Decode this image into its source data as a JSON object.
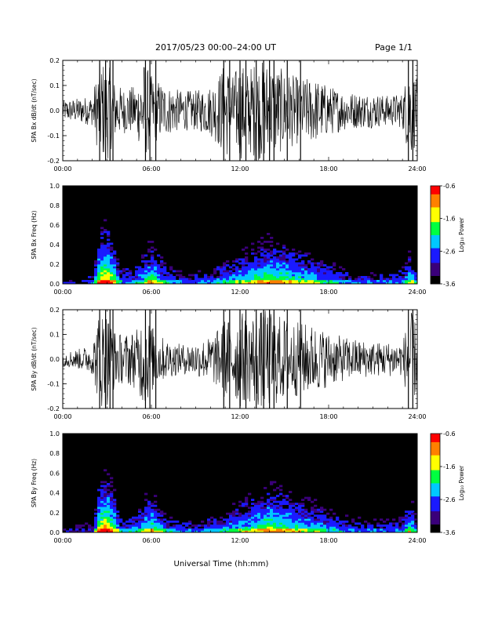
{
  "header": {
    "title": "2017/05/23  00:00–24:00 UT",
    "page": "Page 1/1"
  },
  "xlabel": "Universal Time (hh:mm)",
  "colors": {
    "trace": "#000000",
    "colormap": [
      "#000000",
      "#3a007a",
      "#1a1aff",
      "#00c8ff",
      "#00ff40",
      "#ffff00",
      "#ff8000",
      "#ff0000"
    ]
  },
  "chart_data": [
    {
      "type": "line",
      "ylabel": "SPA Bx dB/dt (nT/sec)",
      "xlim": [
        0,
        24
      ],
      "ylim": [
        -0.2,
        0.2
      ],
      "xticks": [
        "00:00",
        "06:00",
        "12:00",
        "18:00",
        "24:00"
      ],
      "yticks": [
        "-0.2",
        "-0.1",
        "0.0",
        "0.1",
        "0.2"
      ],
      "ytick_values": [
        -0.2,
        -0.1,
        0.0,
        0.1,
        0.2
      ],
      "envelope": {
        "x": [
          0,
          1,
          2,
          2.5,
          3,
          3.5,
          4,
          5,
          5.5,
          6,
          6.5,
          7,
          8,
          9,
          10,
          10.5,
          11,
          11.5,
          12,
          12.5,
          13,
          13.5,
          14,
          15,
          16,
          17,
          18,
          19,
          20,
          21,
          22,
          23,
          23.5,
          24
        ],
        "amplitude": [
          0.04,
          0.05,
          0.06,
          0.2,
          0.2,
          0.12,
          0.09,
          0.1,
          0.2,
          0.14,
          0.12,
          0.1,
          0.08,
          0.08,
          0.1,
          0.14,
          0.2,
          0.14,
          0.2,
          0.16,
          0.2,
          0.2,
          0.2,
          0.16,
          0.13,
          0.13,
          0.1,
          0.08,
          0.07,
          0.07,
          0.06,
          0.07,
          0.2,
          0.12
        ]
      }
    },
    {
      "type": "heatmap",
      "ylabel": "SPA Bx Freq (Hz)",
      "xlim": [
        0,
        24
      ],
      "ylim": [
        0.0,
        1.0
      ],
      "xticks": [
        "00:00",
        "06:00",
        "12:00",
        "18:00",
        "24:00"
      ],
      "yticks": [
        "0.0",
        "0.2",
        "0.4",
        "0.6",
        "0.8",
        "1.0"
      ],
      "ytick_values": [
        0.0,
        0.2,
        0.4,
        0.6,
        0.8,
        1.0
      ],
      "colorbar": {
        "label": "Log₁₀ Power",
        "ticks": [
          "-0.6",
          "-1.6",
          "-2.6",
          "-3.6"
        ],
        "tick_values": [
          -0.6,
          -1.6,
          -2.6,
          -3.6
        ],
        "range": [
          -3.6,
          -0.6
        ]
      },
      "activity": {
        "x": [
          0,
          1,
          2,
          2.5,
          3,
          3.5,
          4,
          5,
          6,
          7,
          8,
          9,
          10,
          11,
          12,
          13,
          14,
          15,
          16,
          17,
          18,
          19,
          20,
          21,
          22,
          23,
          23.5,
          24
        ],
        "level": [
          0.15,
          0.2,
          0.25,
          0.85,
          0.95,
          0.7,
          0.35,
          0.4,
          0.7,
          0.4,
          0.3,
          0.3,
          0.35,
          0.45,
          0.55,
          0.65,
          0.75,
          0.7,
          0.6,
          0.55,
          0.45,
          0.35,
          0.3,
          0.3,
          0.3,
          0.35,
          0.6,
          0.4
        ]
      }
    },
    {
      "type": "line",
      "ylabel": "SPA By dB/dt (nT/sec)",
      "xlim": [
        0,
        24
      ],
      "ylim": [
        -0.2,
        0.2
      ],
      "xticks": [
        "00:00",
        "06:00",
        "12:00",
        "18:00",
        "24:00"
      ],
      "yticks": [
        "-0.2",
        "-0.1",
        "0.0",
        "0.1",
        "0.2"
      ],
      "ytick_values": [
        -0.2,
        -0.1,
        0.0,
        0.1,
        0.2
      ],
      "envelope": {
        "x": [
          0,
          1,
          2,
          2.5,
          3,
          3.5,
          4,
          5,
          5.5,
          6,
          6.5,
          7,
          8,
          9,
          10,
          10.5,
          11,
          11.5,
          12,
          12.5,
          13,
          13.5,
          14,
          15,
          16,
          17,
          18,
          19,
          20,
          21,
          22,
          23,
          23.5,
          24
        ],
        "amplitude": [
          0.03,
          0.04,
          0.06,
          0.2,
          0.2,
          0.12,
          0.1,
          0.12,
          0.2,
          0.14,
          0.1,
          0.08,
          0.06,
          0.07,
          0.09,
          0.12,
          0.17,
          0.15,
          0.2,
          0.17,
          0.2,
          0.2,
          0.2,
          0.17,
          0.15,
          0.14,
          0.11,
          0.09,
          0.08,
          0.07,
          0.07,
          0.07,
          0.2,
          0.14
        ]
      }
    },
    {
      "type": "heatmap",
      "ylabel": "SPA By Freq (Hz)",
      "xlim": [
        0,
        24
      ],
      "ylim": [
        0.0,
        1.0
      ],
      "xticks": [
        "00:00",
        "06:00",
        "12:00",
        "18:00",
        "24:00"
      ],
      "yticks": [
        "0.0",
        "0.2",
        "0.4",
        "0.6",
        "0.8",
        "1.0"
      ],
      "ytick_values": [
        0.0,
        0.2,
        0.4,
        0.6,
        0.8,
        1.0
      ],
      "colorbar": {
        "label": "Log₁₀ Power",
        "ticks": [
          "-0.6",
          "-1.6",
          "-2.6",
          "-3.6"
        ],
        "tick_values": [
          -0.6,
          -1.6,
          -2.6,
          -3.6
        ],
        "range": [
          -3.6,
          -0.6
        ]
      },
      "activity": {
        "x": [
          0,
          1,
          2,
          2.5,
          3,
          3.5,
          4,
          5,
          6,
          7,
          8,
          9,
          10,
          11,
          12,
          13,
          14,
          15,
          16,
          17,
          18,
          19,
          20,
          21,
          22,
          23,
          23.5,
          24
        ],
        "level": [
          0.15,
          0.2,
          0.25,
          0.85,
          0.95,
          0.7,
          0.35,
          0.4,
          0.7,
          0.4,
          0.3,
          0.3,
          0.35,
          0.45,
          0.55,
          0.65,
          0.75,
          0.7,
          0.6,
          0.55,
          0.45,
          0.35,
          0.3,
          0.3,
          0.3,
          0.35,
          0.6,
          0.4
        ]
      }
    }
  ]
}
